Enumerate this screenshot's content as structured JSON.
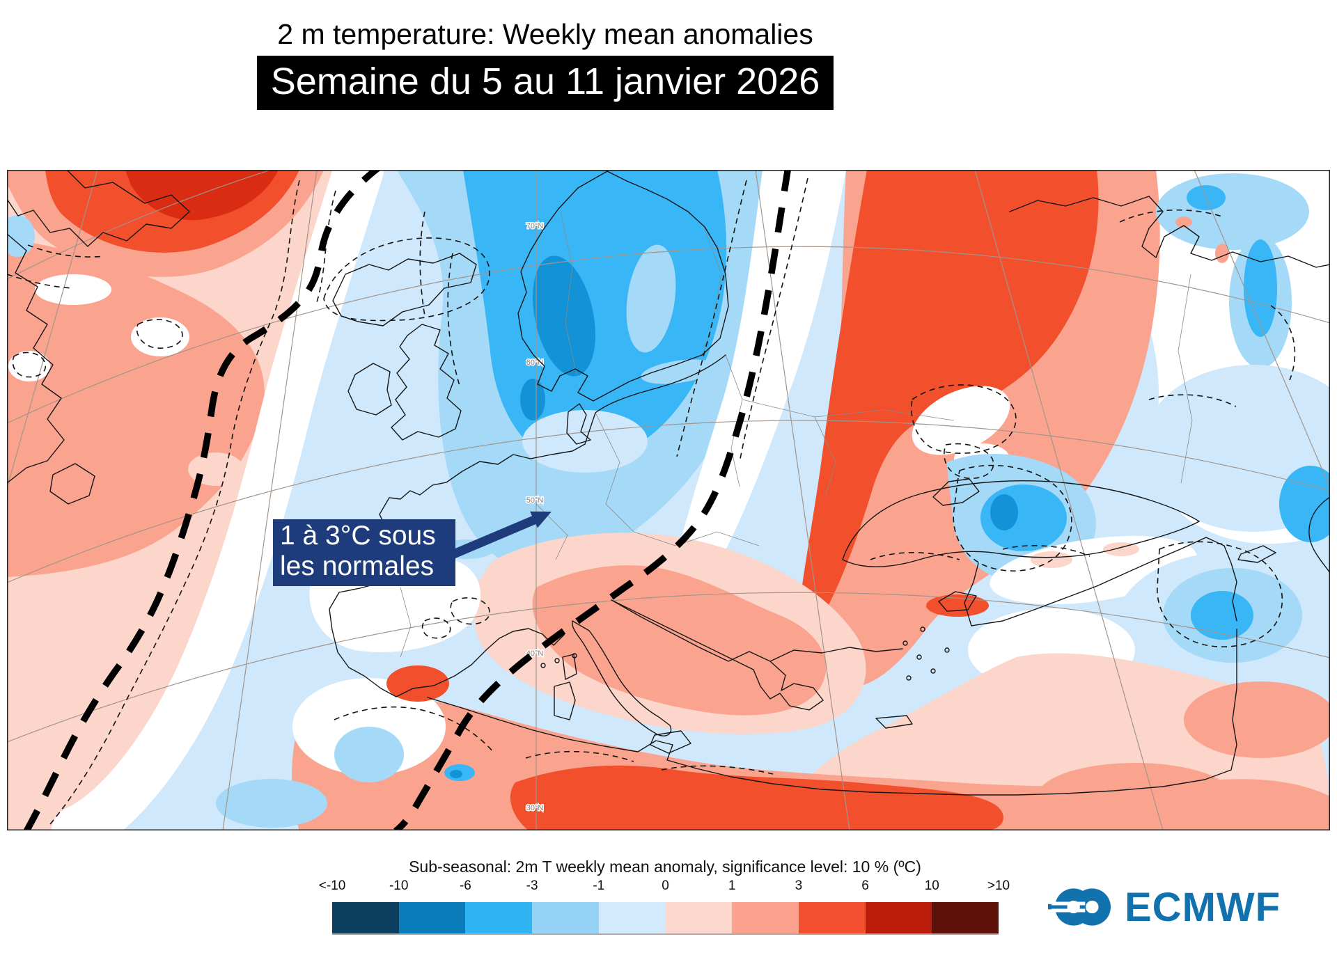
{
  "title": "2 m temperature: Weekly mean anomalies",
  "banner": "Semaine du 5 au 11 janvier 2026",
  "annotation": {
    "line1": "1 à 3°C sous",
    "line2": "les normales"
  },
  "map": {
    "lat_labels": [
      "70°N",
      "60°N",
      "50°N",
      "40°N",
      "30°N"
    ]
  },
  "legend": {
    "title": "Sub-seasonal: 2m T weekly mean anomaly, significance level: 10 % (ºC)",
    "ticks": [
      "<-10",
      "-10",
      "-6",
      "-3",
      "-1",
      "0",
      "1",
      "3",
      "6",
      "10",
      ">10"
    ],
    "colors": [
      "#0c3e60",
      "#0b7cba",
      "#2fb4f4",
      "#96d2f5",
      "#d2eafc",
      "#fdd8cf",
      "#faa28e",
      "#f2502e",
      "#bb1d0c",
      "#5e1108"
    ]
  },
  "logo": {
    "text": "ECMWF"
  },
  "chart_data": {
    "type": "heatmap",
    "title": "2 m temperature: Weekly mean anomalies",
    "subtitle": "Semaine du 5 au 11 janvier 2026",
    "colorbar_label": "Sub-seasonal: 2m T weekly mean anomaly, significance level: 10 % (ºC)",
    "colorbar_bounds_degC": [
      -10,
      -6,
      -3,
      -1,
      0,
      1,
      3,
      6,
      10
    ],
    "colorbar_colors": [
      "#0c3e60",
      "#0b7cba",
      "#2fb4f4",
      "#96d2f5",
      "#d2eafc",
      "#fdd8cf",
      "#faa28e",
      "#f2502e",
      "#bb1d0c",
      "#5e1108"
    ],
    "region": "North Atlantic and Europe",
    "grid_latitude_labels": [
      "70°N",
      "60°N",
      "50°N",
      "40°N",
      "30°N"
    ],
    "notable_features": [
      {
        "area": "Western Europe / France / UK / Iberia",
        "anomaly_degC": "-1 to -3",
        "note": "1 à 3°C sous les normales"
      },
      {
        "area": "Scandinavia",
        "anomaly_degC": "-3 to -6"
      },
      {
        "area": "Western Russia / Eastern Europe",
        "anomaly_degC": "+3 to +6"
      },
      {
        "area": "Greenland / NW Atlantic",
        "anomaly_degC": "+3 to +6"
      },
      {
        "area": "North Africa (Algeria / Libya)",
        "anomaly_degC": "+3 to +6"
      },
      {
        "area": "Mediterranean / Balkans",
        "anomaly_degC": "+1 to +3"
      },
      {
        "area": "Caucasus / Middle East",
        "anomaly_degC": "-1 to -3"
      }
    ]
  },
  "palette": {
    "paleBlue": "#cfe8fb",
    "lightBlue": "#a4d9f8",
    "midBlue": "#38b6f6",
    "deepBlue": "#1293d8",
    "palePink": "#fcd5cb",
    "salmon": "#faa38f",
    "red": "#f24f2d",
    "darkRed": "#d92c12",
    "graticule": "#a3948a",
    "annotation": "#1e3c7b",
    "logoBlue": "#1172ad"
  }
}
